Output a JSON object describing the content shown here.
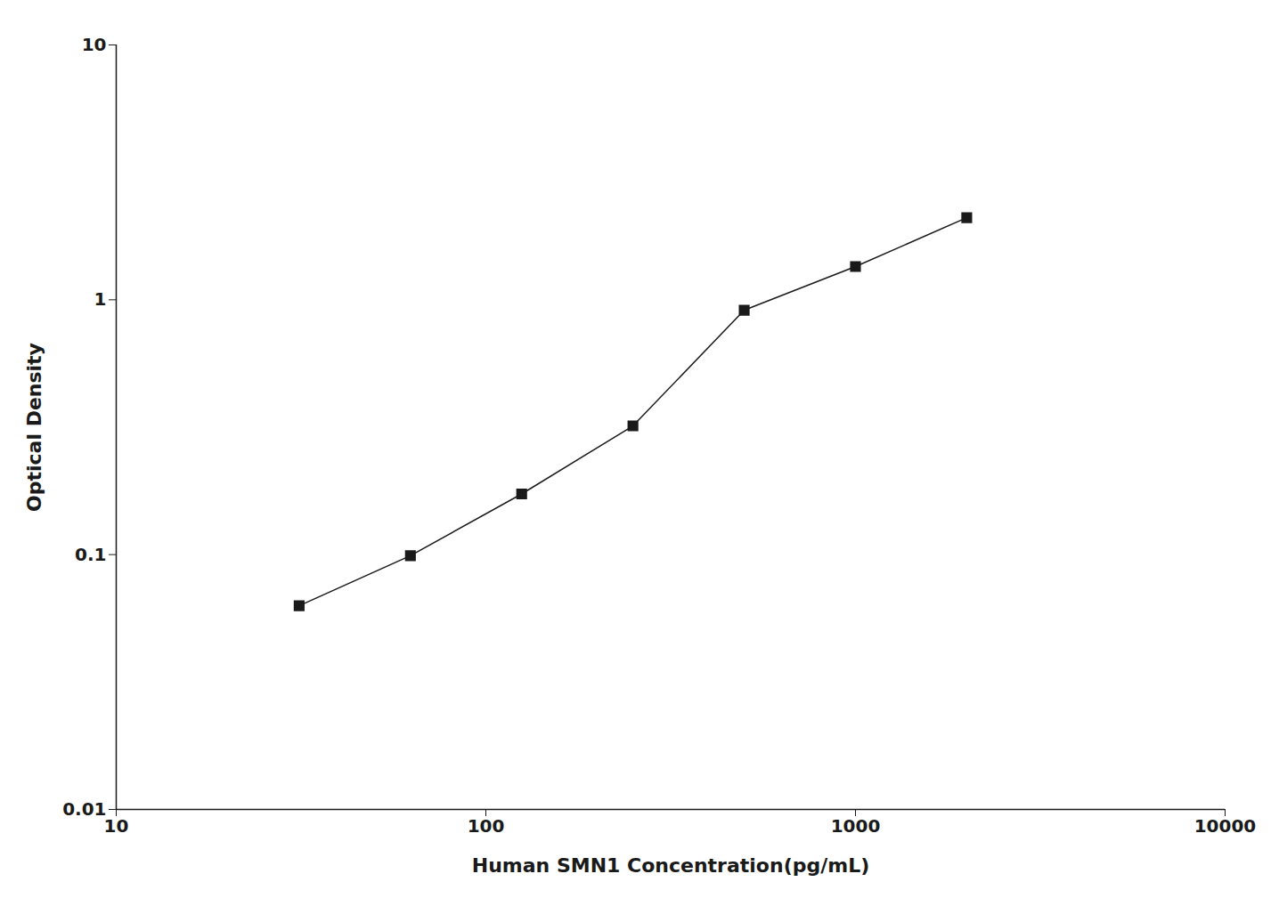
{
  "chart_data": {
    "type": "line",
    "x": [
      31.25,
      62.5,
      125,
      250,
      500,
      1000,
      2000
    ],
    "values": [
      0.063,
      0.099,
      0.173,
      0.32,
      0.91,
      1.35,
      2.1
    ],
    "xlabel": "Human SMN1 Concentration(pg/mL)",
    "ylabel": "Optical Density",
    "xlim": [
      10,
      10000
    ],
    "ylim": [
      0.01,
      10
    ],
    "xticks": [
      10,
      100,
      1000,
      10000
    ],
    "yticks": [
      0.01,
      0.1,
      1,
      10
    ],
    "log": true,
    "grid": false,
    "color": "#1a1a1a",
    "marker": "square"
  }
}
